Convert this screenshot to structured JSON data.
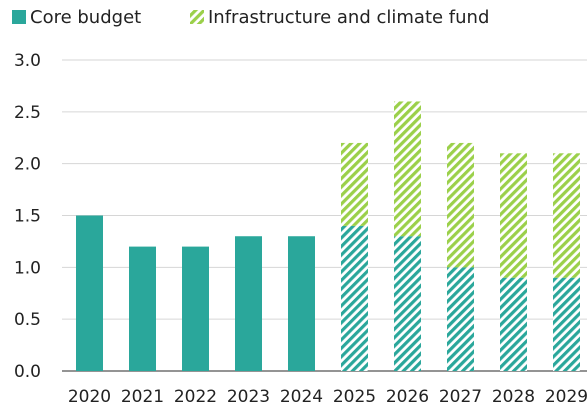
{
  "chart_data": {
    "type": "bar",
    "stacked": true,
    "title": "",
    "xlabel": "",
    "ylabel": "",
    "categories": [
      "2020",
      "2021",
      "2022",
      "2023",
      "2024",
      "2025",
      "2026",
      "2027",
      "2028",
      "2029"
    ],
    "series": [
      {
        "name": "Core budget",
        "values": [
          1.5,
          1.2,
          1.2,
          1.3,
          1.3,
          1.4,
          1.3,
          1.0,
          0.9,
          0.9
        ],
        "color": "#2aa79b",
        "hatched_from_index": 5
      },
      {
        "name": "Infrastructure and climate fund",
        "values": [
          0,
          0,
          0,
          0,
          0,
          0.8,
          1.3,
          1.2,
          1.2,
          1.2
        ],
        "color": "#9bd04a",
        "hatched_from_index": 0
      }
    ],
    "ylim": [
      0,
      3.0
    ],
    "yticks": [
      "0.0",
      "0.5",
      "1.0",
      "1.5",
      "2.0",
      "2.5",
      "3.0"
    ],
    "grid": true,
    "legend_position": "top-left"
  }
}
